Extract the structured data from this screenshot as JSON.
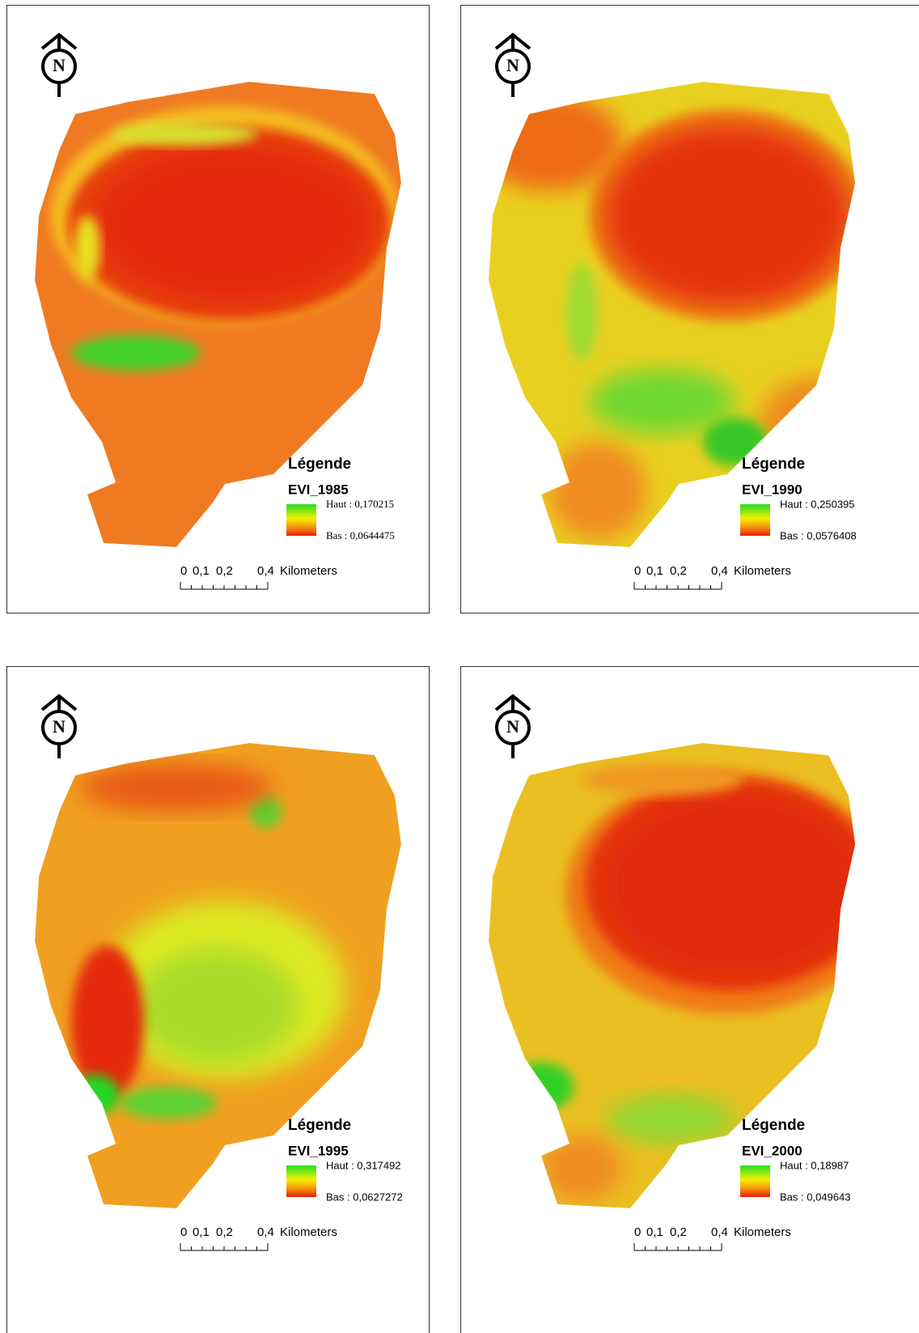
{
  "panels": [
    {
      "north": "N",
      "legend_title": "Légende",
      "layer": "EVI_1985",
      "high": "Haut : 0,170215",
      "low": "Bas : 0,0644475",
      "scale": {
        "ticks": [
          "0",
          "0,1",
          "0,2",
          "0,4"
        ],
        "unit": "Kilometers"
      }
    },
    {
      "north": "N",
      "legend_title": "Légende",
      "layer": "EVI_1990",
      "high": "Haut : 0,250395",
      "low": "Bas : 0,0576408",
      "scale": {
        "ticks": [
          "0",
          "0,1",
          "0,2",
          "0,4"
        ],
        "unit": "Kilometers"
      }
    },
    {
      "north": "N",
      "legend_title": "Légende",
      "layer": "EVI_1995",
      "high": "Haut : 0,317492",
      "low": "Bas : 0,0627272",
      "scale": {
        "ticks": [
          "0",
          "0,1",
          "0,2",
          "0,4"
        ],
        "unit": "Kilometers"
      }
    },
    {
      "north": "N",
      "legend_title": "Légende",
      "layer": "EVI_2000",
      "high": "Haut : 0,18987",
      "low": "Bas : 0,049643",
      "scale": {
        "ticks": [
          "0",
          "0,1",
          "0,2",
          "0,4"
        ],
        "unit": "Kilometers"
      }
    }
  ]
}
